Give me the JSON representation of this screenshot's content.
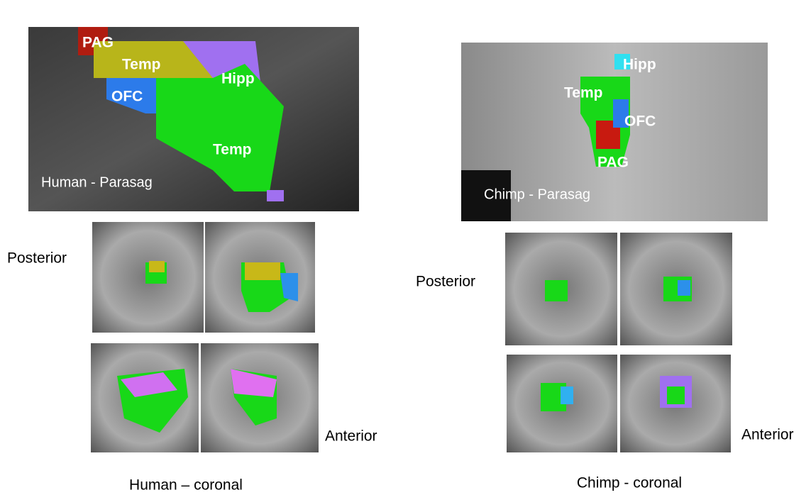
{
  "human": {
    "parasagittal": {
      "labels": [
        "PAG",
        "Temp",
        "Hipp",
        "OFC",
        "Temp"
      ],
      "caption": "Human - Parasag"
    },
    "coronal": {
      "rows": [
        "Posterior",
        "Anterior"
      ],
      "caption": "Human – coronal"
    }
  },
  "chimp": {
    "parasagittal": {
      "labels": [
        "Hipp",
        "Temp",
        "OFC",
        "PAG"
      ],
      "caption": "Chimp - Parasag"
    },
    "coronal": {
      "rows": [
        "Posterior",
        "Anterior"
      ],
      "caption": "Chimp - coronal"
    }
  }
}
